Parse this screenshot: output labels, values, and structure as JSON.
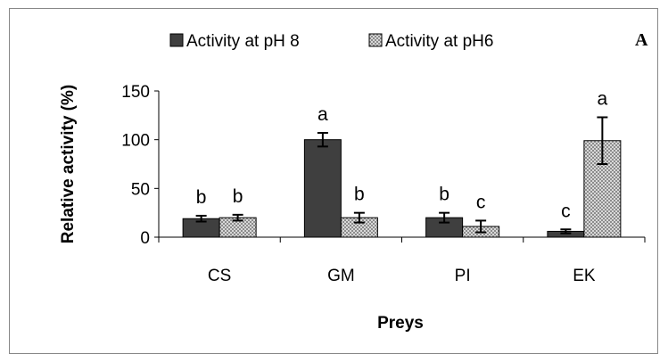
{
  "panel_label": "A",
  "chart_data": {
    "type": "bar",
    "categories": [
      "CS",
      "GM",
      "PI",
      "EK"
    ],
    "series": [
      {
        "name": "Activity at pH 8",
        "values": [
          19,
          100,
          20,
          6
        ],
        "errors": [
          3,
          7,
          5,
          2
        ],
        "labels": [
          "b",
          "a",
          "b",
          "c"
        ],
        "color": "#3f3f3f"
      },
      {
        "name": "Activity at pH6",
        "values": [
          20,
          20,
          11,
          99
        ],
        "errors": [
          3,
          5,
          6,
          24
        ],
        "labels": [
          "b",
          "b",
          "c",
          "a"
        ],
        "color": "#b8b8b8"
      }
    ],
    "ylabel": "Relative activity (%)",
    "xlabel": "Preys",
    "ylim": [
      0,
      150
    ],
    "yticks": [
      0,
      50,
      100,
      150
    ],
    "grid": false,
    "legend": "top"
  }
}
